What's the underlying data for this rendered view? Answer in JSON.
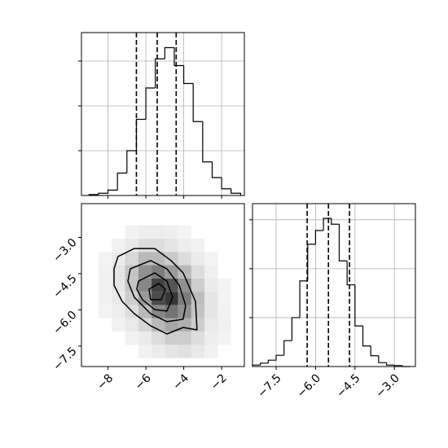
{
  "chart_data": [
    {
      "type": "histogram",
      "bins": [
        -9.0,
        -8.5,
        -8.0,
        -7.5,
        -7.0,
        -6.5,
        -6.0,
        -5.5,
        -5.0,
        -4.5,
        -4.0,
        -3.5,
        -3.0,
        -2.5,
        -2.0,
        -1.5,
        -1.0
      ],
      "counts": [
        2,
        5,
        12,
        50,
        100,
        170,
        240,
        305,
        330,
        290,
        250,
        165,
        75,
        40,
        15,
        5
      ],
      "quantiles": [
        -6.5,
        -5.4,
        -4.4
      ],
      "xlim": [
        -9.4,
        -0.8
      ],
      "ylim": [
        0,
        363.6
      ],
      "xticks": [
        -8,
        -6,
        -4,
        -2
      ],
      "yticks": [
        100,
        200,
        300
      ],
      "grid": true,
      "color": "#000000"
    },
    {
      "type": "hist2d",
      "xedges": [
        -8.5,
        -7.8,
        -7.1,
        -6.4,
        -5.7,
        -5.0,
        -4.3,
        -3.6,
        -2.9,
        -2.2,
        -1.5
      ],
      "yedges": [
        -8.0,
        -7.45,
        -6.9,
        -6.35,
        -5.8,
        -5.25,
        -4.7,
        -4.15,
        -3.6,
        -3.05,
        -2.5
      ],
      "density": [
        [
          0,
          0,
          0,
          0.02,
          0.05,
          0.08,
          0.1,
          0.06,
          0.02,
          0
        ],
        [
          0,
          0,
          0.02,
          0.05,
          0.12,
          0.2,
          0.2,
          0.12,
          0.04,
          0.01
        ],
        [
          0,
          0.02,
          0.06,
          0.15,
          0.3,
          0.4,
          0.35,
          0.2,
          0.06,
          0.02
        ],
        [
          0.01,
          0.04,
          0.12,
          0.3,
          0.55,
          0.65,
          0.5,
          0.25,
          0.08,
          0.02
        ],
        [
          0.02,
          0.06,
          0.2,
          0.45,
          0.85,
          0.95,
          0.6,
          0.28,
          0.08,
          0.01
        ],
        [
          0.02,
          0.08,
          0.25,
          0.55,
          0.9,
          0.8,
          0.5,
          0.2,
          0.05,
          0.01
        ],
        [
          0.02,
          0.08,
          0.25,
          0.5,
          0.6,
          0.45,
          0.3,
          0.12,
          0.03,
          0
        ],
        [
          0.01,
          0.05,
          0.15,
          0.3,
          0.3,
          0.22,
          0.12,
          0.05,
          0.01,
          0
        ],
        [
          0,
          0.02,
          0.06,
          0.12,
          0.12,
          0.08,
          0.04,
          0.02,
          0,
          0
        ],
        [
          0,
          0,
          0.02,
          0.04,
          0.04,
          0.03,
          0.01,
          0,
          0,
          0
        ]
      ],
      "contours": [
        {
          "x": [
            -7.47,
            -6.61,
            -5.53,
            -4.67,
            -4.03,
            -3.38,
            -3.3,
            -4.03,
            -4.89,
            -5.75,
            -6.61,
            -7.25,
            -7.68,
            -7.68
          ],
          "y": [
            -3.79,
            -3.46,
            -3.46,
            -3.96,
            -4.47,
            -5.65,
            -6.83,
            -6.73,
            -7.0,
            -6.66,
            -6.16,
            -5.65,
            -4.98,
            -4.3
          ]
        },
        {
          "x": [
            -6.82,
            -5.75,
            -4.89,
            -4.24,
            -3.9,
            -4.03,
            -4.89,
            -5.75,
            -6.61,
            -6.95
          ],
          "y": [
            -4.3,
            -3.96,
            -4.3,
            -4.98,
            -5.82,
            -6.39,
            -6.49,
            -6.16,
            -5.48,
            -4.81
          ]
        },
        {
          "x": [
            -6.39,
            -5.53,
            -4.89,
            -4.58,
            -4.89,
            -5.53,
            -6.18,
            -6.48
          ],
          "y": [
            -4.81,
            -4.47,
            -4.81,
            -5.48,
            -6.05,
            -5.99,
            -5.58,
            -5.14
          ]
        },
        {
          "x": [
            -5.83,
            -5.32,
            -4.97,
            -5.19,
            -5.75
          ],
          "y": [
            -5.14,
            -4.91,
            -5.14,
            -5.58,
            -5.58
          ]
        }
      ],
      "xlim": [
        -9.4,
        -0.8
      ],
      "ylim": [
        -8.35,
        -1.6
      ],
      "xticks": [
        {
          "value": -8,
          "label": "−8"
        },
        {
          "value": -6,
          "label": "−6"
        },
        {
          "value": -4,
          "label": "−4"
        },
        {
          "value": -2,
          "label": "−2"
        }
      ],
      "yticks": [
        {
          "value": -3.0,
          "label": "−3.0"
        },
        {
          "value": -4.5,
          "label": "−4.5"
        },
        {
          "value": -6.0,
          "label": "−6.0"
        },
        {
          "value": -7.5,
          "label": "−7.5"
        }
      ],
      "color": "#000000"
    },
    {
      "type": "histogram",
      "bins": [
        -8.4,
        -8.1,
        -7.8,
        -7.5,
        -7.2,
        -6.9,
        -6.6,
        -6.3,
        -6.0,
        -5.7,
        -5.4,
        -5.1,
        -4.8,
        -4.5,
        -4.2,
        -3.9,
        -3.6,
        -3.3,
        -3.0,
        -2.7,
        -2.4
      ],
      "counts": [
        3,
        7,
        13,
        23,
        53,
        100,
        175,
        250,
        278,
        303,
        291,
        216,
        167,
        83,
        42,
        22,
        8,
        3,
        2,
        0
      ],
      "quantiles": [
        -6.32,
        -5.51,
        -4.71
      ],
      "xlim": [
        -8.4,
        -2.2
      ],
      "ylim": [
        0,
        333
      ],
      "xticks": [
        {
          "value": -7.5,
          "label": "−7.5"
        },
        {
          "value": -6.0,
          "label": "−6.0"
        },
        {
          "value": -4.5,
          "label": "−4.5"
        },
        {
          "value": -3.0,
          "label": "−3.0"
        }
      ],
      "yticks": [
        100,
        200,
        300
      ],
      "grid": true,
      "color": "#000000"
    }
  ]
}
